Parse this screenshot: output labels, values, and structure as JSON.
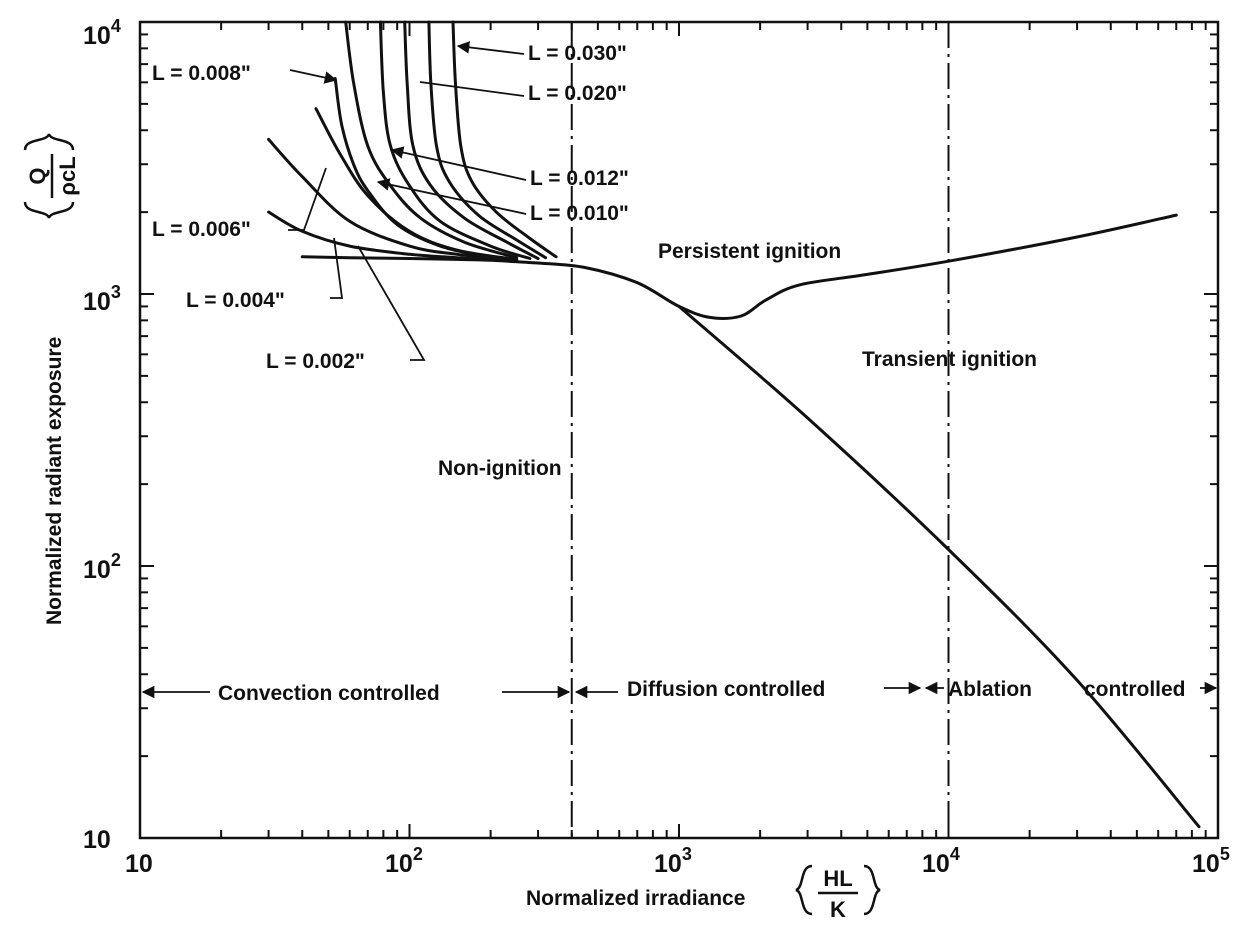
{
  "chart_data": {
    "type": "line",
    "x_scale": "log",
    "y_scale": "log",
    "xlim": [
      10,
      100000
    ],
    "ylim": [
      10,
      10000
    ],
    "grid": false,
    "xlabel": "Normalized irradiance",
    "xlabel_fraction": {
      "numerator": "HL",
      "denominator": "K"
    },
    "ylabel": "Normalized radiant exposure",
    "ylabel_fraction": {
      "numerator": "Q",
      "denominator": "ρcL"
    },
    "x_tick_labels": [
      {
        "value": 10,
        "base": "10",
        "exp": ""
      },
      {
        "value": 100,
        "base": "10",
        "exp": "2"
      },
      {
        "value": 1000,
        "base": "10",
        "exp": "3"
      },
      {
        "value": 10000,
        "base": "10",
        "exp": "4"
      },
      {
        "value": 100000,
        "base": "10",
        "exp": "5"
      }
    ],
    "y_tick_labels": [
      {
        "value": 10,
        "base": "10",
        "exp": ""
      },
      {
        "value": 100,
        "base": "10",
        "exp": "2"
      },
      {
        "value": 1000,
        "base": "10",
        "exp": "3"
      },
      {
        "value": 10000,
        "base": "10",
        "exp": "4"
      }
    ],
    "vertical_lines": [
      400,
      10000
    ],
    "series": [
      {
        "name": "L = 0.002\"",
        "x": [
          40,
          60,
          100,
          150,
          200,
          300
        ],
        "y": [
          1370,
          1360,
          1350,
          1340,
          1330,
          1300
        ]
      },
      {
        "name": "L = 0.004\"",
        "x": [
          30,
          40,
          60,
          100,
          150,
          250
        ],
        "y": [
          2000,
          1700,
          1500,
          1400,
          1360,
          1320
        ]
      },
      {
        "name": "L = 0.006\"",
        "x": [
          30,
          40,
          60,
          100,
          150,
          250
        ],
        "y": [
          3700,
          2700,
          1850,
          1500,
          1400,
          1330
        ]
      },
      {
        "name": "L = 0.008\"",
        "x": [
          45,
          55,
          70,
          100,
          150,
          250
        ],
        "y": [
          4800,
          3300,
          2300,
          1700,
          1450,
          1340
        ]
      },
      {
        "name": "L = 0.010\"",
        "x": [
          53,
          56,
          62,
          70,
          90,
          130,
          200
        ],
        "y": [
          6200,
          4200,
          3000,
          2400,
          1800,
          1500,
          1360
        ]
      },
      {
        "name": "L = 0.012\"",
        "x": [
          58,
          62,
          70,
          85,
          110,
          160,
          250
        ],
        "y": [
          10000,
          6000,
          3500,
          2500,
          1900,
          1550,
          1360
        ]
      },
      {
        "name": "L = 0.020\"",
        "x": [
          78,
          80,
          85,
          100,
          130,
          200,
          280
        ],
        "y": [
          10000,
          5500,
          3500,
          2500,
          1850,
          1500,
          1350
        ]
      },
      {
        "name": "L = 0.030\"",
        "x": [
          96,
          98,
          103,
          120,
          160,
          230,
          300
        ],
        "y": [
          10000,
          6000,
          3500,
          2500,
          1900,
          1550,
          1350
        ]
      },
      {
        "name": "L = 0.030\"",
        "x": [
          118,
          120,
          126,
          140,
          180,
          250,
          320
        ],
        "y": [
          10000,
          6000,
          3500,
          2600,
          1950,
          1580,
          1360
        ]
      },
      {
        "name": "L = 0.030\"",
        "x": [
          145,
          148,
          155,
          170,
          210,
          280,
          350
        ],
        "y": [
          10000,
          6000,
          3500,
          2600,
          2000,
          1600,
          1370
        ]
      },
      {
        "name": "Persistent ignition",
        "x": [
          300,
          450,
          700,
          1000,
          1300,
          1700,
          2100,
          2800,
          5000,
          10000,
          30000,
          70000
        ],
        "y": [
          1300,
          1250,
          1100,
          900,
          820,
          830,
          950,
          1080,
          1180,
          1320,
          1620,
          1950
        ]
      },
      {
        "name": "Transient ignition",
        "x": [
          1000,
          3000,
          10000,
          30000,
          85000
        ],
        "y": [
          900,
          350,
          115,
          38,
          11
        ]
      }
    ],
    "annotations": {
      "curve_labels": [
        {
          "text": "L = 0.030\""
        },
        {
          "text": "L = 0.020\""
        },
        {
          "text": "L = 0.012\""
        },
        {
          "text": "L = 0.010\""
        },
        {
          "text": "L = 0.008\""
        },
        {
          "text": "L = 0.006\""
        },
        {
          "text": "L = 0.004\""
        },
        {
          "text": "L = 0.002\""
        }
      ],
      "regions": {
        "persistent": "Persistent ignition",
        "transient": "Transient ignition",
        "non_ignition": "Non-ignition"
      },
      "regimes": {
        "convection": "Convection controlled",
        "diffusion": "Diffusion controlled",
        "ablation": "Ablation",
        "ablation_controlled": "controlled"
      }
    }
  }
}
